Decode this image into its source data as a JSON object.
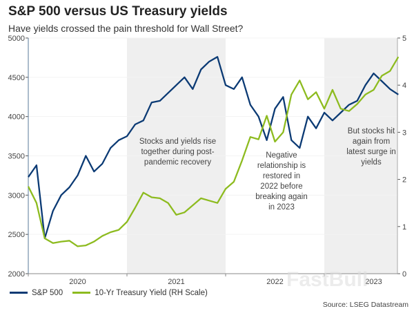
{
  "title": "S&P 500 versus US Treasury yields",
  "subtitle": "Have yields crossed the pain threshold for Wall Street?",
  "source": "Source: LSEG Datastream",
  "watermark": "FastBull",
  "chart_data": {
    "type": "line",
    "x_ticks": [
      "2020",
      "2021",
      "2022",
      "2023"
    ],
    "y_left": {
      "ylim": [
        2000,
        5000
      ],
      "ticks": [
        "2000",
        "2500",
        "3000",
        "3500",
        "4000",
        "4500",
        "5000"
      ]
    },
    "y_right": {
      "ylim": [
        0,
        5
      ],
      "ticks": [
        "0",
        "1",
        "2",
        "3",
        "4",
        "5"
      ]
    },
    "shaded_years": [
      "2021",
      "2023"
    ],
    "annotations": [
      "Stocks and yields rise together during post-pandemic recovery",
      "Negative relationship is restored in 2022 before breaking again in 2023",
      "But stocks hit again from latest surge in yields"
    ],
    "legend_position": "bottom-left",
    "x": [
      "2020-01",
      "2020-02",
      "2020-03",
      "2020-04",
      "2020-05",
      "2020-06",
      "2020-07",
      "2020-08",
      "2020-09",
      "2020-10",
      "2020-11",
      "2020-12",
      "2021-01",
      "2021-02",
      "2021-03",
      "2021-04",
      "2021-05",
      "2021-06",
      "2021-07",
      "2021-08",
      "2021-09",
      "2021-10",
      "2021-11",
      "2021-12",
      "2022-01",
      "2022-02",
      "2022-03",
      "2022-04",
      "2022-05",
      "2022-06",
      "2022-07",
      "2022-08",
      "2022-09",
      "2022-10",
      "2022-11",
      "2022-12",
      "2023-01",
      "2023-02",
      "2023-03",
      "2023-04",
      "2023-05",
      "2023-06",
      "2023-07",
      "2023-08",
      "2023-09",
      "2023-10"
    ],
    "series": [
      {
        "name": "S&P 500",
        "axis": "left",
        "color": "#0b3a74",
        "values": [
          3230,
          3380,
          2450,
          2800,
          3000,
          3100,
          3250,
          3500,
          3300,
          3400,
          3600,
          3700,
          3750,
          3900,
          3950,
          4180,
          4200,
          4300,
          4400,
          4500,
          4350,
          4600,
          4700,
          4760,
          4400,
          4350,
          4500,
          4150,
          4000,
          3700,
          4100,
          4250,
          3700,
          3600,
          4000,
          3850,
          4050,
          3950,
          4050,
          4150,
          4200,
          4400,
          4550,
          4450,
          4350,
          4280
        ]
      },
      {
        "name": "10-Yr Treasury Yield (RH Scale)",
        "axis": "right",
        "color": "#8dbb1f",
        "values": [
          1.85,
          1.5,
          0.75,
          0.65,
          0.68,
          0.7,
          0.58,
          0.6,
          0.68,
          0.8,
          0.88,
          0.93,
          1.1,
          1.4,
          1.72,
          1.62,
          1.6,
          1.5,
          1.25,
          1.3,
          1.45,
          1.6,
          1.55,
          1.5,
          1.8,
          1.95,
          2.4,
          2.9,
          2.85,
          3.35,
          2.8,
          3.0,
          3.8,
          4.1,
          3.7,
          3.85,
          3.5,
          3.9,
          3.5,
          3.45,
          3.6,
          3.8,
          3.9,
          4.2,
          4.3,
          4.6
        ]
      }
    ]
  }
}
